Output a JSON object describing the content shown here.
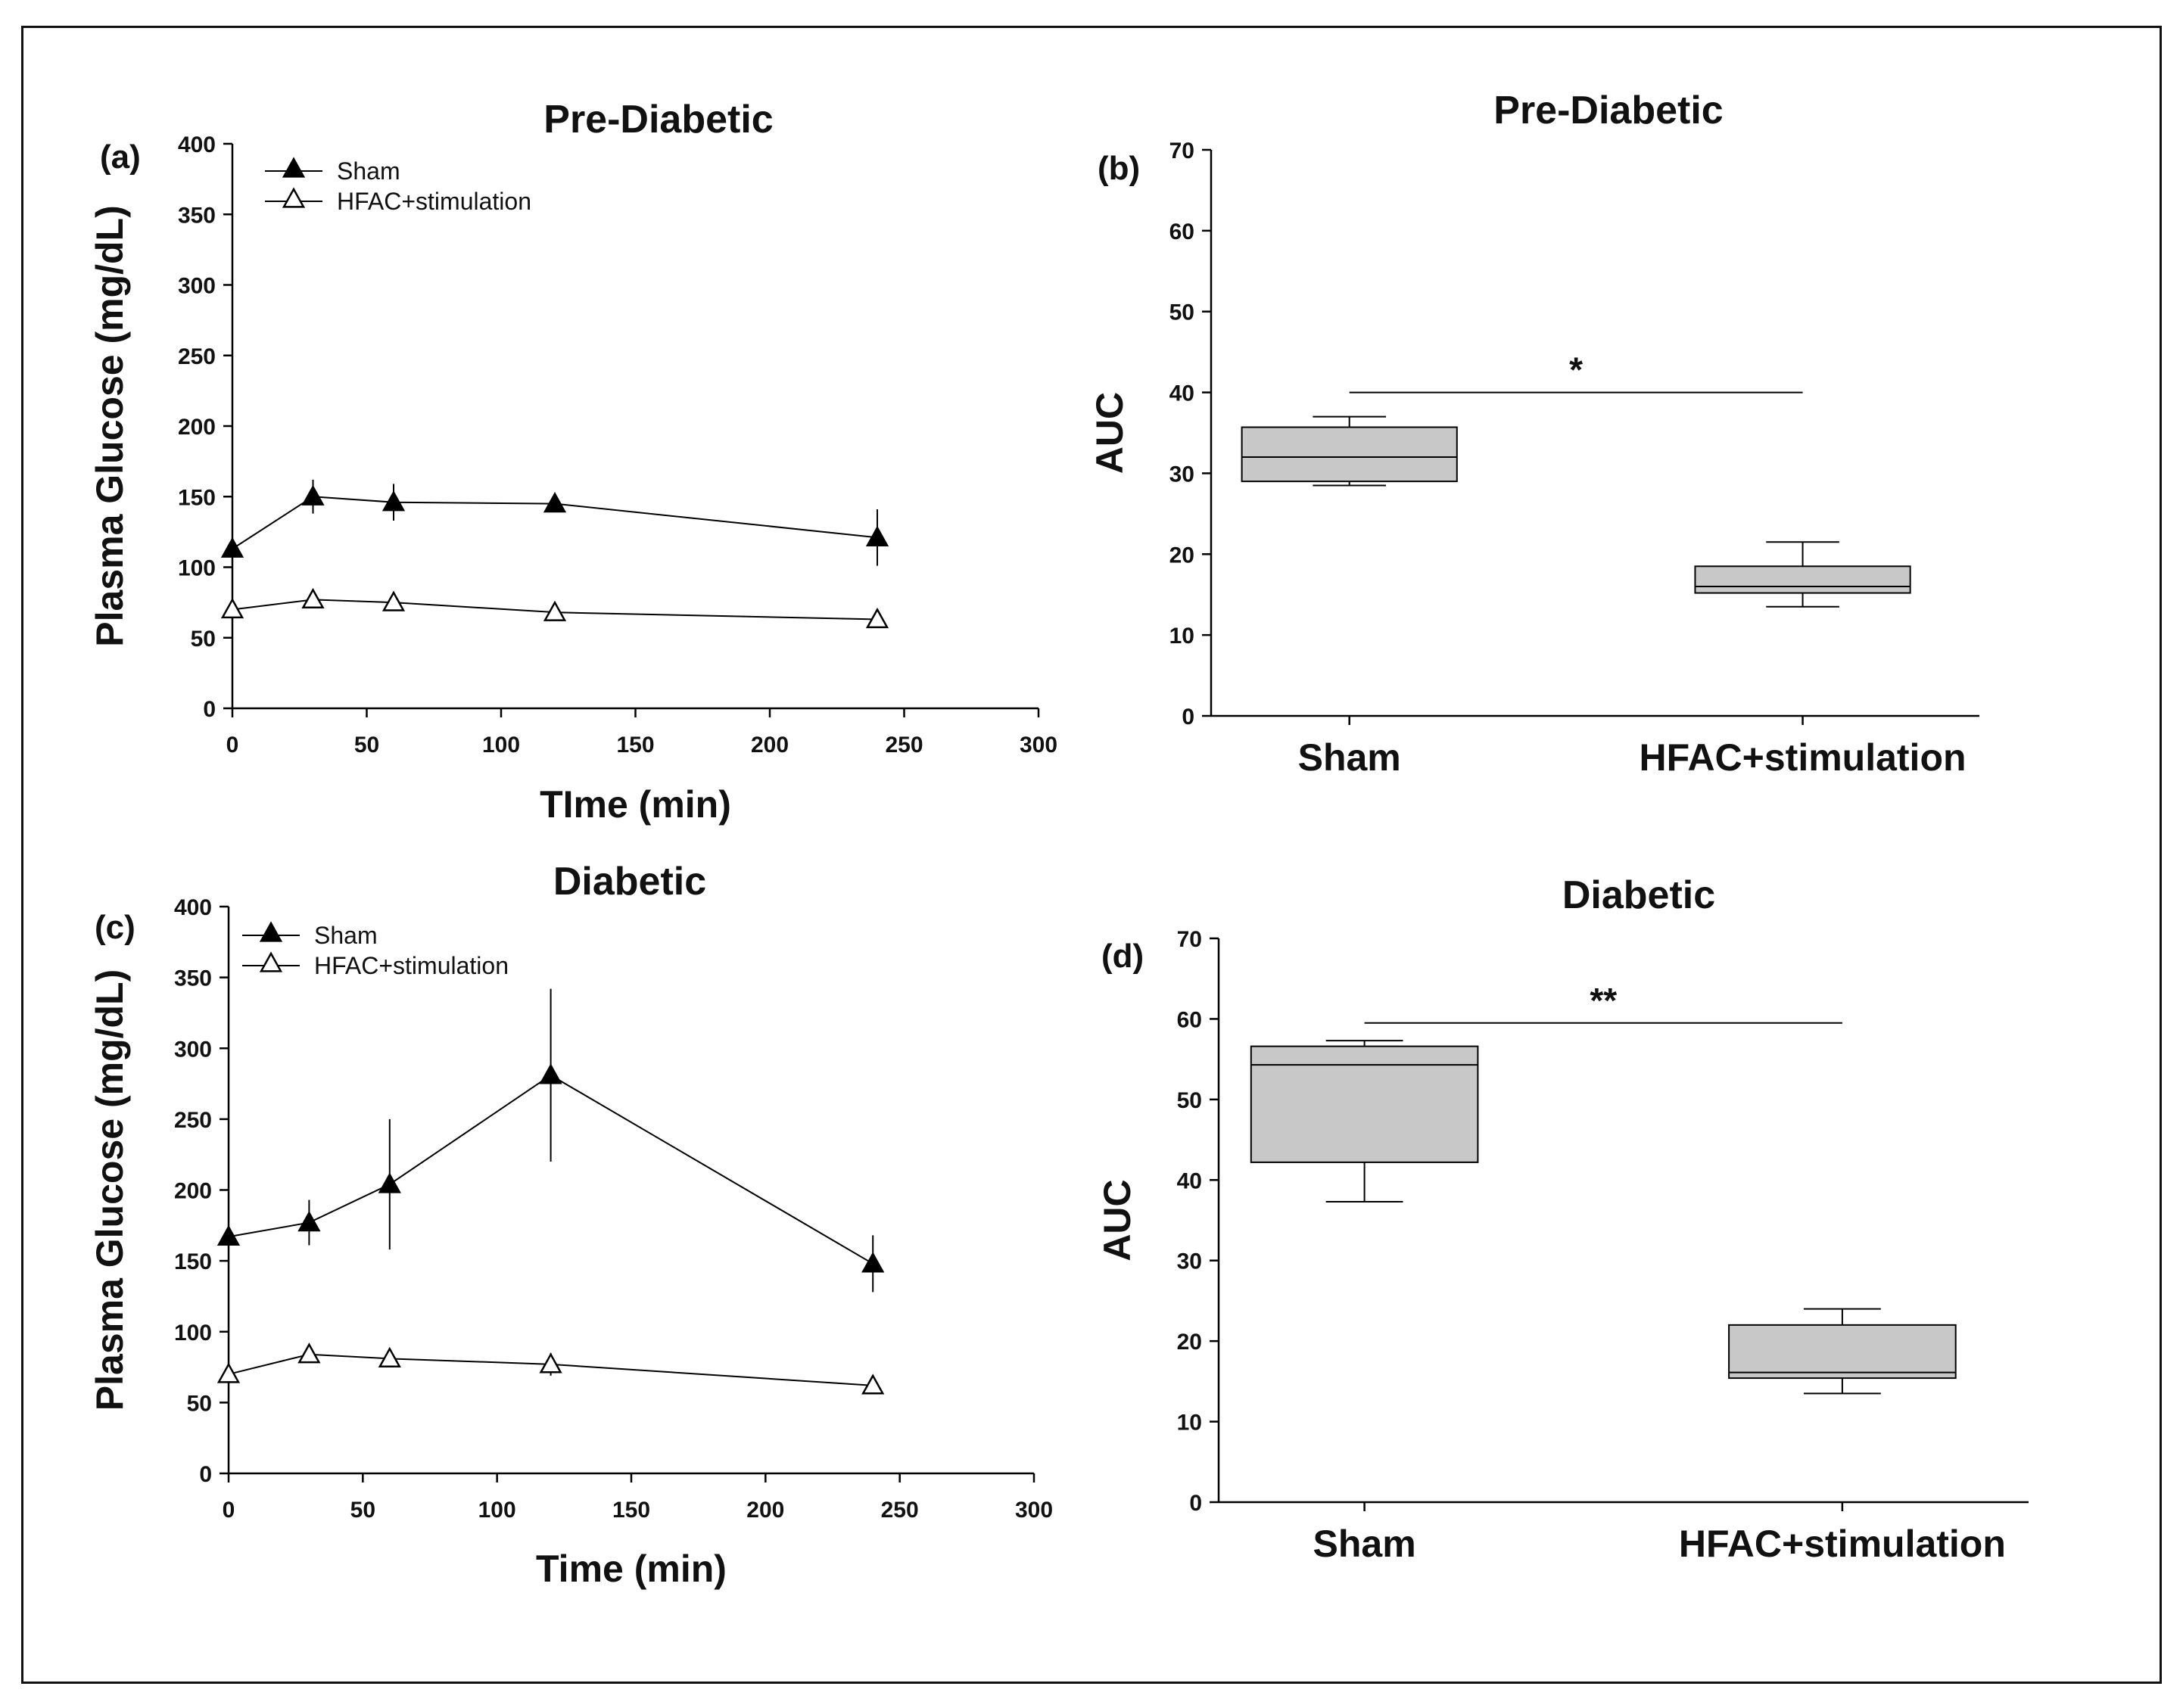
{
  "chart_data": [
    {
      "id": "a",
      "type": "line",
      "panel_label": "(a)",
      "title": "Pre-Diabetic",
      "xlabel": "TIme (min)",
      "ylabel": "Plasma Glucose (mg/dL)",
      "xlim": [
        0,
        300
      ],
      "ylim": [
        0,
        400
      ],
      "xticks": [
        0,
        50,
        100,
        150,
        200,
        250,
        300
      ],
      "yticks": [
        0,
        50,
        100,
        150,
        200,
        250,
        300,
        350,
        400
      ],
      "legend_position": "top-left",
      "x": [
        0,
        30,
        60,
        120,
        240
      ],
      "series": [
        {
          "name": "Sham",
          "marker": "filled-triangle",
          "values": [
            113,
            150,
            146,
            145,
            121
          ],
          "error": [
            4,
            12,
            13,
            5,
            20
          ]
        },
        {
          "name": "HFAC+stimulation",
          "marker": "open-triangle",
          "values": [
            70,
            77,
            75,
            68,
            63
          ],
          "error": [
            3,
            4,
            3,
            3,
            3
          ]
        }
      ]
    },
    {
      "id": "b",
      "type": "box",
      "panel_label": "(b)",
      "title": "Pre-Diabetic",
      "xlabel": "",
      "ylabel": "AUC",
      "ylim": [
        0,
        70
      ],
      "yticks": [
        0,
        10,
        20,
        30,
        40,
        50,
        60,
        70
      ],
      "categories": [
        "Sham",
        "HFAC+stimulation"
      ],
      "boxes": [
        {
          "whisker_low": 28.5,
          "q1": 29,
          "median": 32,
          "q3": 35.7,
          "whisker_high": 37
        },
        {
          "whisker_low": 13.5,
          "q1": 15.2,
          "median": 16,
          "q3": 18.5,
          "whisker_high": 21.5
        }
      ],
      "significance": {
        "label": "*",
        "y": 40
      }
    },
    {
      "id": "c",
      "type": "line",
      "panel_label": "(c)",
      "title": "Diabetic",
      "xlabel": "Time (min)",
      "ylabel": "Plasma Glucose (mg/dL)",
      "xlim": [
        0,
        300
      ],
      "ylim": [
        0,
        400
      ],
      "xticks": [
        0,
        50,
        100,
        150,
        200,
        250,
        300
      ],
      "yticks": [
        0,
        50,
        100,
        150,
        200,
        250,
        300,
        350,
        400
      ],
      "legend_position": "top-left",
      "x": [
        0,
        30,
        60,
        120,
        240
      ],
      "series": [
        {
          "name": "Sham",
          "marker": "filled-triangle",
          "values": [
            167,
            177,
            204,
            281,
            148
          ],
          "error": [
            4,
            16,
            46,
            61,
            20
          ]
        },
        {
          "name": "HFAC+stimulation",
          "marker": "open-triangle",
          "values": [
            70,
            84,
            81,
            77,
            62
          ],
          "error": [
            3,
            4,
            3,
            8,
            3
          ]
        }
      ]
    },
    {
      "id": "d",
      "type": "box",
      "panel_label": "(d)",
      "title": "Diabetic",
      "xlabel": "",
      "ylabel": "AUC",
      "ylim": [
        0,
        70
      ],
      "yticks": [
        0,
        10,
        20,
        30,
        40,
        50,
        60,
        70
      ],
      "categories": [
        "Sham",
        "HFAC+stimulation"
      ],
      "boxes": [
        {
          "whisker_low": 37.3,
          "q1": 42.2,
          "median": 54.3,
          "q3": 56.6,
          "whisker_high": 57.3
        },
        {
          "whisker_low": 13.5,
          "q1": 15.4,
          "median": 16.1,
          "q3": 22,
          "whisker_high": 24
        }
      ],
      "significance": {
        "label": "**",
        "y": 59.5
      }
    }
  ]
}
